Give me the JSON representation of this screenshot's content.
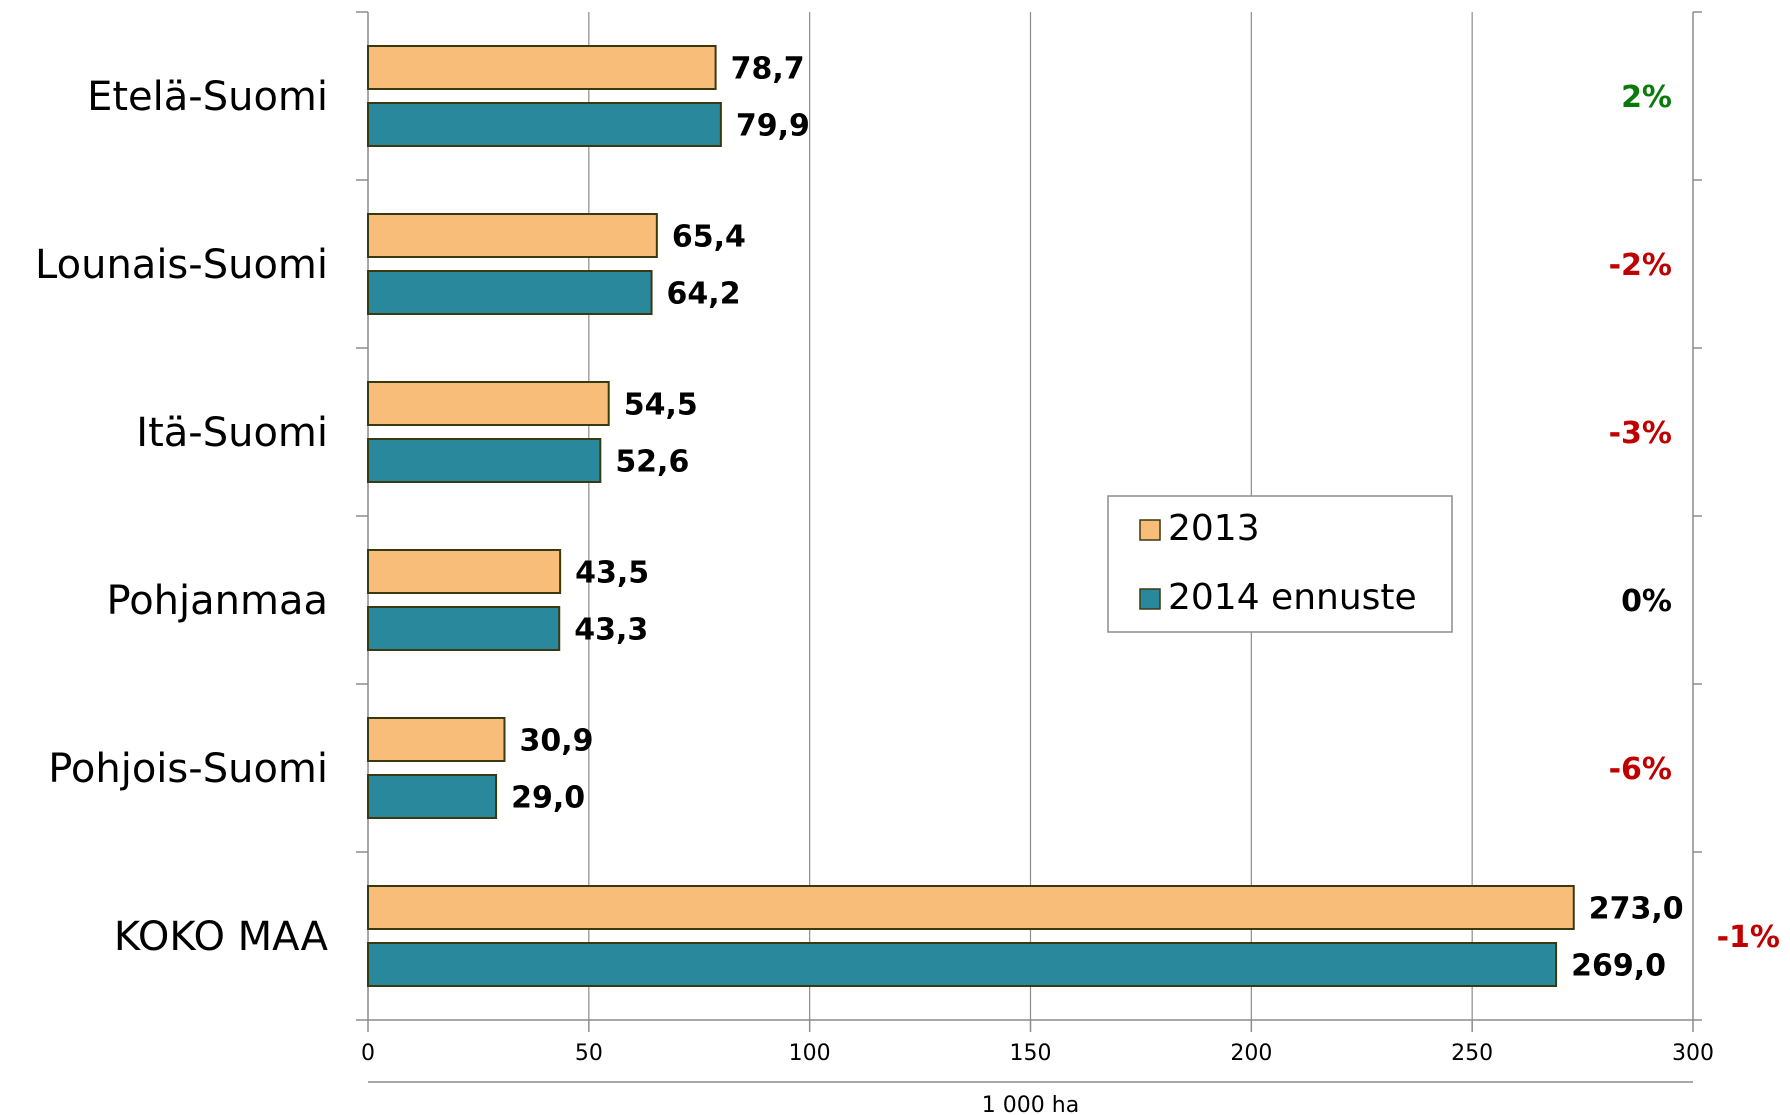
{
  "chart_data": {
    "type": "bar",
    "orientation": "horizontal",
    "categories": [
      "Etelä-Suomi",
      "Lounais-Suomi",
      "Itä-Suomi",
      "Pohjanmaa",
      "Pohjois-Suomi",
      "KOKO MAA"
    ],
    "series": [
      {
        "name": "2013",
        "color": "#F9BD7A",
        "values": [
          78.7,
          65.4,
          54.5,
          43.5,
          30.9,
          273.0
        ],
        "labels": [
          "78,7",
          "65,4",
          "54,5",
          "43,5",
          "30,9",
          "273,0"
        ]
      },
      {
        "name": "2014 ennuste",
        "color": "#2A889C",
        "values": [
          79.9,
          64.2,
          52.6,
          43.3,
          29.0,
          269.0
        ],
        "labels": [
          "79,9",
          "64,2",
          "52,6",
          "43,3",
          "29,0",
          "269,0"
        ]
      }
    ],
    "change": [
      {
        "text": "2%",
        "color": "#0A7A0A"
      },
      {
        "text": "-2%",
        "color": "#C00000"
      },
      {
        "text": "-3%",
        "color": "#C00000"
      },
      {
        "text": "0%",
        "color": "#000000"
      },
      {
        "text": "-6%",
        "color": "#C00000"
      },
      {
        "text": "-1%",
        "color": "#C00000"
      }
    ],
    "xlabel": "1 000 ha",
    "xlim": [
      0,
      300
    ],
    "xticks": [
      0,
      50,
      100,
      150,
      200,
      250,
      300
    ],
    "xtick_labels": [
      "0",
      "50",
      "100",
      "150",
      "200",
      "250",
      "300"
    ],
    "grid": true,
    "legend_position": "center-right",
    "bar_border_color": "#3A3A10"
  }
}
